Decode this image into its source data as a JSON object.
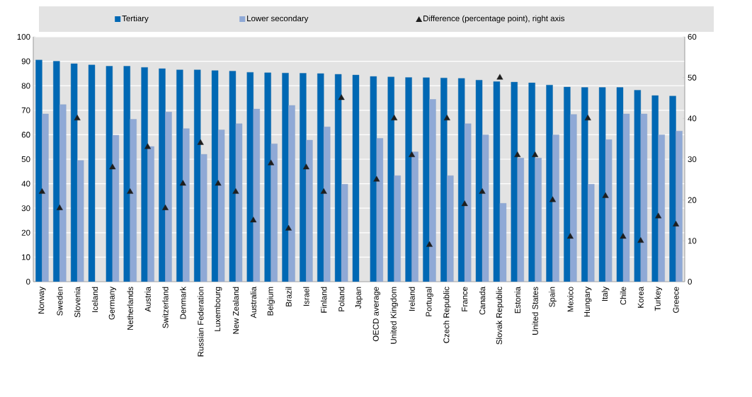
{
  "chart_data": {
    "type": "bar",
    "categories": [
      "Norway",
      "Sweden",
      "Slovenia",
      "Iceland",
      "Germany",
      "Netherlands",
      "Austria",
      "Switzerland",
      "Denmark",
      "Russian Federation",
      "Luxembourg",
      "New Zealand",
      "Australia",
      "Belgium",
      "Brazil",
      "Israel",
      "Finland",
      "Poland",
      "Japan",
      "OECD average",
      "United Kingdom",
      "Ireland",
      "Portugal",
      "Czech Republic",
      "France",
      "Canada",
      "Slovak Republic",
      "Estonia",
      "United States",
      "Spain",
      "Mexico",
      "Hungary",
      "Italy",
      "Chile",
      "Korea",
      "Turkey",
      "Greece"
    ],
    "series": [
      {
        "name": "Tertiary",
        "color": "#0068b4",
        "values": [
          90.5,
          90,
          89,
          88.5,
          88,
          88,
          87.5,
          87,
          86.5,
          86.5,
          86.2,
          86,
          85.5,
          85.3,
          85.2,
          85.1,
          85,
          84.7,
          84.4,
          83.8,
          83.6,
          83.4,
          83.3,
          83.2,
          83,
          82.3,
          81.7,
          81.5,
          81.2,
          80.3,
          79.5,
          79.3,
          79.3,
          79.3,
          78.2,
          76,
          75.8
        ]
      },
      {
        "name": "Lower secondary",
        "color": "#8fa9d6",
        "values": [
          68.5,
          72.3,
          49.5,
          null,
          59.8,
          66.3,
          55.2,
          69.3,
          62.5,
          52,
          62,
          64.5,
          70.5,
          56.3,
          72,
          57.8,
          63.2,
          39.8,
          null,
          58.5,
          43.3,
          53,
          74.5,
          43.3,
          64.5,
          60,
          32,
          50.5,
          50.5,
          60,
          68.3,
          39.8,
          58,
          68.5,
          68.5,
          60,
          61.5
        ]
      },
      {
        "name": "Difference (percentage point), right axis",
        "type": "scatter",
        "axis": "y2",
        "marker": "triangle",
        "color": "#1e1e1e",
        "values": [
          22,
          18,
          40,
          null,
          28,
          22,
          33,
          18,
          24,
          34,
          24,
          22,
          15,
          29,
          13,
          28,
          22,
          45,
          null,
          25,
          40,
          31,
          9,
          40,
          19,
          22,
          50,
          31,
          31,
          20,
          11,
          40,
          21,
          11,
          10,
          16,
          14
        ]
      }
    ],
    "ylim": [
      0,
      100
    ],
    "yticks": [
      0,
      10,
      20,
      30,
      40,
      50,
      60,
      70,
      80,
      90,
      100
    ],
    "y2lim": [
      0,
      60
    ],
    "y2ticks": [
      0,
      10,
      20,
      30,
      40,
      50,
      60
    ],
    "grid": "y",
    "legend": "top"
  }
}
